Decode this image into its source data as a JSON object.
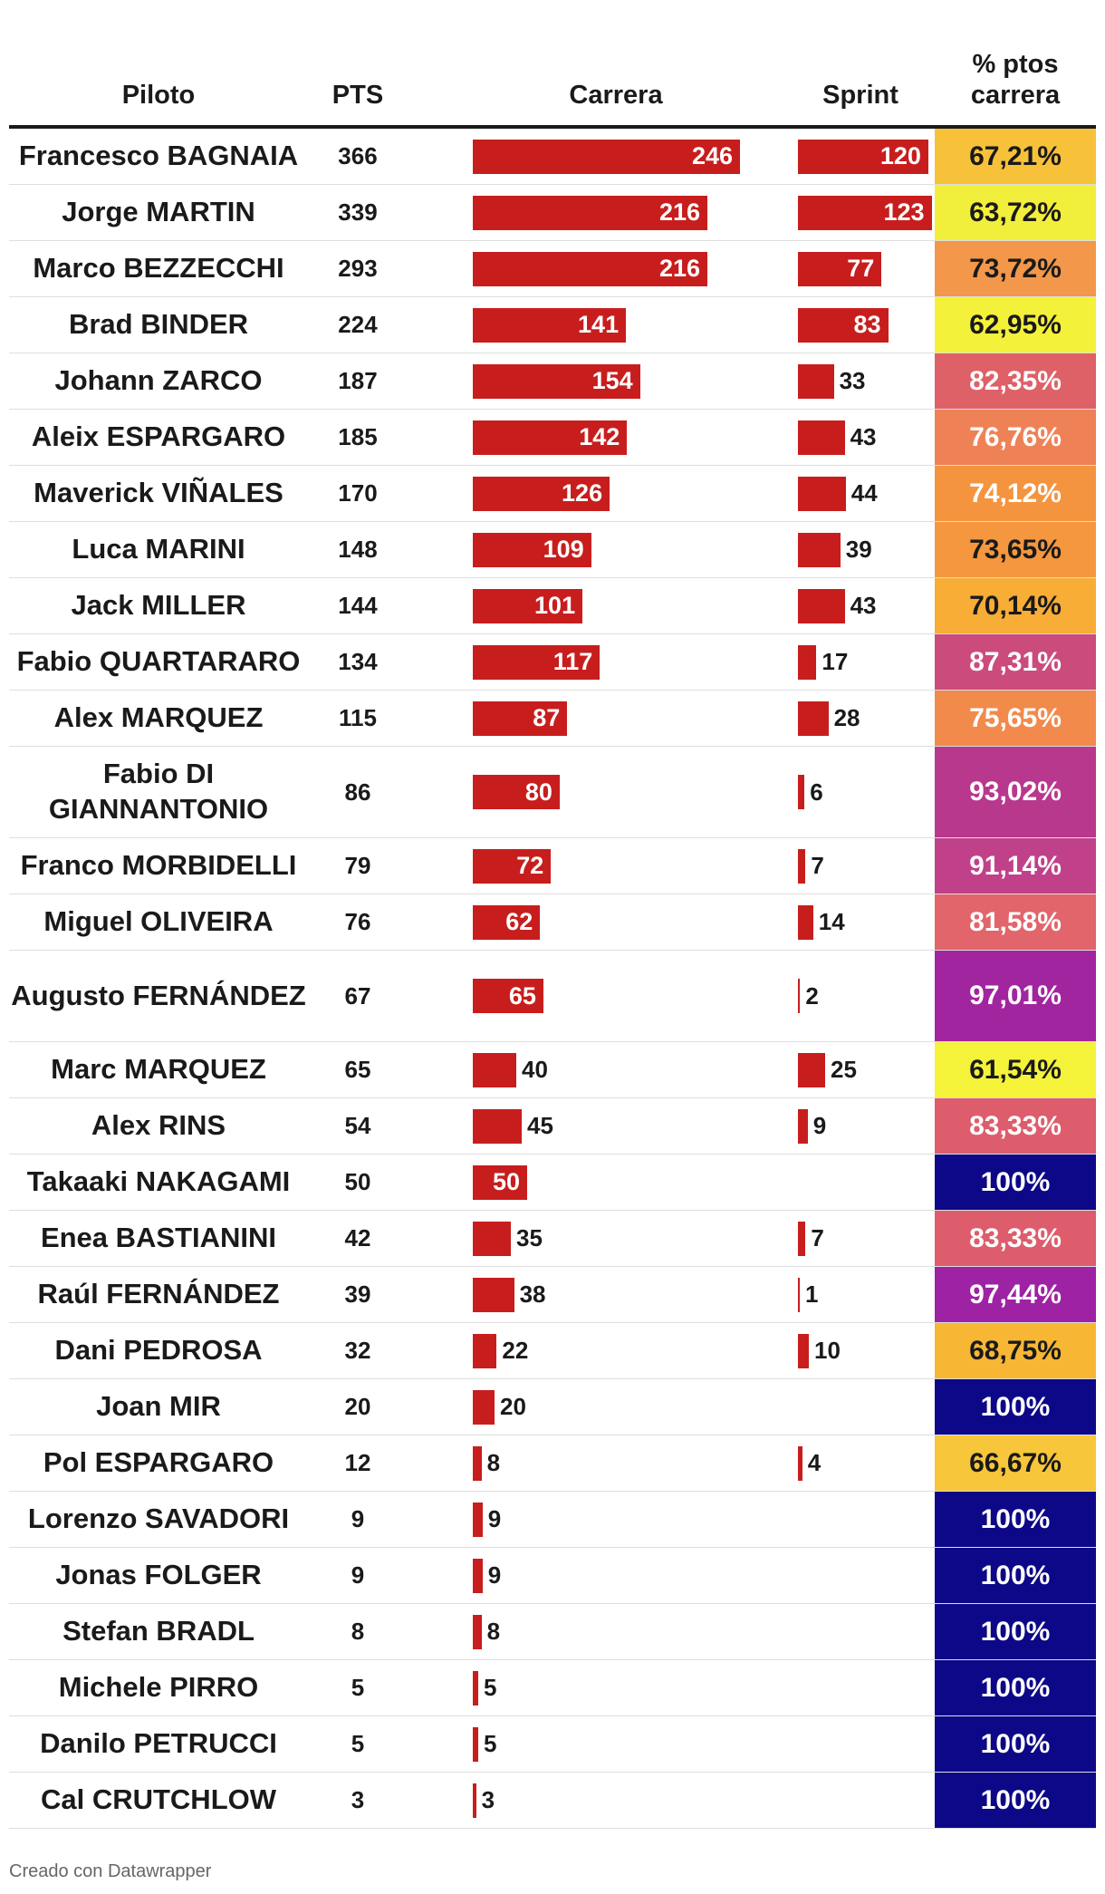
{
  "header": {
    "piloto": "Piloto",
    "pts": "PTS",
    "carrera": "Carrera",
    "sprint": "Sprint",
    "pct": "% ptos carrera"
  },
  "footer": "Creado con Datawrapper",
  "colors": {
    "bar": "#c71e1d"
  },
  "chart_data": {
    "type": "table",
    "columns": [
      "Piloto",
      "PTS",
      "Carrera",
      "Sprint",
      "% ptos carrera"
    ],
    "bar_scale_max": 246,
    "rows": [
      {
        "name": "Francesco BAGNAIA",
        "pts": 366,
        "carrera": 246,
        "sprint": 120,
        "pct": "67,21%",
        "color": "#f7c13a",
        "text": "#1a1a1a"
      },
      {
        "name": "Jorge MARTIN",
        "pts": 339,
        "carrera": 216,
        "sprint": 123,
        "pct": "63,72%",
        "color": "#f2ee3c",
        "text": "#1a1a1a"
      },
      {
        "name": "Marco BEZZECCHI",
        "pts": 293,
        "carrera": 216,
        "sprint": 77,
        "pct": "73,72%",
        "color": "#f3974a",
        "text": "#1a1a1a"
      },
      {
        "name": "Brad BINDER",
        "pts": 224,
        "carrera": 141,
        "sprint": 83,
        "pct": "62,95%",
        "color": "#f4f13a",
        "text": "#1a1a1a"
      },
      {
        "name": "Johann ZARCO",
        "pts": 187,
        "carrera": 154,
        "sprint": 33,
        "pct": "82,35%",
        "color": "#de6168",
        "text": "#ffffff"
      },
      {
        "name": "Aleix ESPARGARO",
        "pts": 185,
        "carrera": 142,
        "sprint": 43,
        "pct": "76,76%",
        "color": "#ef8157",
        "text": "#ffffff"
      },
      {
        "name": "Maverick VIÑALES",
        "pts": 170,
        "carrera": 126,
        "sprint": 44,
        "pct": "74,12%",
        "color": "#f5943f",
        "text": "#ffffff"
      },
      {
        "name": "Luca MARINI",
        "pts": 148,
        "carrera": 109,
        "sprint": 39,
        "pct": "73,65%",
        "color": "#f4973f",
        "text": "#1a1a1a"
      },
      {
        "name": "Jack MILLER",
        "pts": 144,
        "carrera": 101,
        "sprint": 43,
        "pct": "70,14%",
        "color": "#f7ad36",
        "text": "#1a1a1a"
      },
      {
        "name": "Fabio QUARTARARO",
        "pts": 134,
        "carrera": 117,
        "sprint": 17,
        "pct": "87,31%",
        "color": "#cb4b7d",
        "text": "#ffffff"
      },
      {
        "name": "Alex MARQUEZ",
        "pts": 115,
        "carrera": 87,
        "sprint": 28,
        "pct": "75,65%",
        "color": "#f28a4b",
        "text": "#ffffff"
      },
      {
        "name": "Fabio DI GIANNANTONIO",
        "pts": 86,
        "carrera": 80,
        "sprint": 6,
        "pct": "93,02%",
        "color": "#b8388e",
        "text": "#ffffff",
        "tall": true
      },
      {
        "name": "Franco MORBIDELLI",
        "pts": 79,
        "carrera": 72,
        "sprint": 7,
        "pct": "91,14%",
        "color": "#c0418a",
        "text": "#ffffff"
      },
      {
        "name": "Miguel OLIVEIRA",
        "pts": 76,
        "carrera": 62,
        "sprint": 14,
        "pct": "81,58%",
        "color": "#e1656a",
        "text": "#ffffff"
      },
      {
        "name": "Augusto FERNÁNDEZ",
        "pts": 67,
        "carrera": 65,
        "sprint": 2,
        "pct": "97,01%",
        "color": "#a225a0",
        "text": "#ffffff",
        "tall": true
      },
      {
        "name": "Marc MARQUEZ",
        "pts": 65,
        "carrera": 40,
        "sprint": 25,
        "pct": "61,54%",
        "color": "#f4f33a",
        "text": "#1a1a1a"
      },
      {
        "name": "Alex RINS",
        "pts": 54,
        "carrera": 45,
        "sprint": 9,
        "pct": "83,33%",
        "color": "#dd5d6c",
        "text": "#ffffff"
      },
      {
        "name": "Takaaki NAKAGAMI",
        "pts": 50,
        "carrera": 50,
        "sprint": null,
        "pct": "100%",
        "color": "#0d0887",
        "text": "#ffffff"
      },
      {
        "name": "Enea BASTIANINI",
        "pts": 42,
        "carrera": 35,
        "sprint": 7,
        "pct": "83,33%",
        "color": "#dd5d6c",
        "text": "#ffffff"
      },
      {
        "name": "Raúl FERNÁNDEZ",
        "pts": 39,
        "carrera": 38,
        "sprint": 1,
        "pct": "97,44%",
        "color": "#9e22a4",
        "text": "#ffffff"
      },
      {
        "name": "Dani PEDROSA",
        "pts": 32,
        "carrera": 22,
        "sprint": 10,
        "pct": "68,75%",
        "color": "#f7b734",
        "text": "#1a1a1a"
      },
      {
        "name": "Joan MIR",
        "pts": 20,
        "carrera": 20,
        "sprint": null,
        "pct": "100%",
        "color": "#0d0887",
        "text": "#ffffff"
      },
      {
        "name": "Pol ESPARGARO",
        "pts": 12,
        "carrera": 8,
        "sprint": 4,
        "pct": "66,67%",
        "color": "#f7c63a",
        "text": "#1a1a1a"
      },
      {
        "name": "Lorenzo SAVADORI",
        "pts": 9,
        "carrera": 9,
        "sprint": null,
        "pct": "100%",
        "color": "#0d0887",
        "text": "#ffffff"
      },
      {
        "name": "Jonas FOLGER",
        "pts": 9,
        "carrera": 9,
        "sprint": null,
        "pct": "100%",
        "color": "#0d0887",
        "text": "#ffffff"
      },
      {
        "name": "Stefan BRADL",
        "pts": 8,
        "carrera": 8,
        "sprint": null,
        "pct": "100%",
        "color": "#0d0887",
        "text": "#ffffff"
      },
      {
        "name": "Michele PIRRO",
        "pts": 5,
        "carrera": 5,
        "sprint": null,
        "pct": "100%",
        "color": "#0d0887",
        "text": "#ffffff"
      },
      {
        "name": "Danilo PETRUCCI",
        "pts": 5,
        "carrera": 5,
        "sprint": null,
        "pct": "100%",
        "color": "#0d0887",
        "text": "#ffffff"
      },
      {
        "name": "Cal CRUTCHLOW",
        "pts": 3,
        "carrera": 3,
        "sprint": null,
        "pct": "100%",
        "color": "#0d0887",
        "text": "#ffffff"
      }
    ]
  }
}
